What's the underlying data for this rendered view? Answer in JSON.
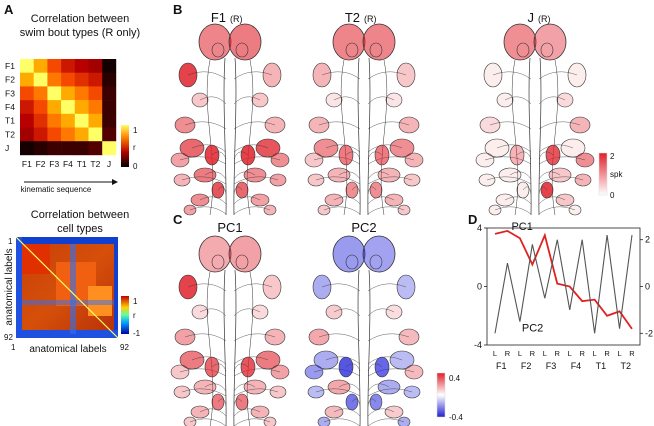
{
  "panels": {
    "A": {
      "letter": "A",
      "top_title_line1": "Correlation between",
      "top_title_line2": "swim bout types (R only)",
      "row_labels": [
        "F1",
        "F2",
        "F3",
        "F4",
        "T1",
        "T2",
        "J"
      ],
      "col_labels": [
        "F1",
        "F2",
        "F3",
        "F4",
        "T1",
        "T2",
        "J"
      ],
      "axis_caption": "kinematic sequence",
      "top_colorbar": {
        "max_label": "1",
        "mid_label": "r",
        "min_label": "0"
      },
      "top_matrix": [
        [
          1.0,
          0.8,
          0.6,
          0.5,
          0.45,
          0.4,
          0.05
        ],
        [
          0.8,
          1.0,
          0.7,
          0.6,
          0.55,
          0.5,
          0.1
        ],
        [
          0.6,
          0.7,
          1.0,
          0.8,
          0.7,
          0.6,
          0.15
        ],
        [
          0.5,
          0.6,
          0.8,
          1.0,
          0.8,
          0.7,
          0.15
        ],
        [
          0.45,
          0.55,
          0.7,
          0.8,
          1.0,
          0.8,
          0.15
        ],
        [
          0.4,
          0.5,
          0.6,
          0.7,
          0.8,
          1.0,
          0.2
        ],
        [
          0.05,
          0.1,
          0.15,
          0.15,
          0.15,
          0.2,
          1.0
        ]
      ],
      "bottom_title_line1": "Correlation between",
      "bottom_title_line2": "cell types",
      "bottom_y_label": "anatomical labels",
      "bottom_x_label": "anatomical labels",
      "bottom_tick_start": "1",
      "bottom_tick_end": "92",
      "bottom_colorbar": {
        "max_label": "1",
        "mid_label": "r",
        "min_label": "-1"
      }
    },
    "B": {
      "letter": "B",
      "maps": [
        {
          "title": "F1",
          "suffix": "(R)"
        },
        {
          "title": "T2",
          "suffix": "(R)"
        },
        {
          "title": "J",
          "suffix": "(R)"
        }
      ],
      "colorbar": {
        "max_label": "2",
        "unit": "spk",
        "min_label": "0"
      }
    },
    "C": {
      "letter": "C",
      "maps": [
        {
          "title": "PC1"
        },
        {
          "title": "PC2"
        }
      ],
      "colorbar": {
        "max_label": "0.4",
        "min_label": "-0.4"
      }
    },
    "D": {
      "letter": "D",
      "left_ticks": [
        "4",
        "0",
        "-4"
      ],
      "right_ticks": [
        "2",
        "0",
        "-2"
      ],
      "x_lr_labels": [
        "L",
        "R",
        "L",
        "R",
        "L",
        "R",
        "L",
        "R",
        "L",
        "R",
        "L",
        "R"
      ],
      "x_groups": [
        "F1",
        "F2",
        "F3",
        "F4",
        "T1",
        "T2"
      ],
      "series_labels": {
        "pc1": "PC1",
        "pc2": "PC2"
      },
      "colors": {
        "pc1": "#e0221e",
        "pc2": "#555555"
      }
    }
  },
  "chart_data": {
    "type": "line",
    "categories": [
      "F1 L",
      "F1 R",
      "F2 L",
      "F2 R",
      "F3 L",
      "F3 R",
      "F4 L",
      "F4 R",
      "T1 L",
      "T1 R",
      "T2 L",
      "T2 R"
    ],
    "series": [
      {
        "name": "PC1",
        "axis": "left",
        "values": [
          3.6,
          3.8,
          3.3,
          1.5,
          3.5,
          0.2,
          0.0,
          -1.0,
          -0.9,
          -2.0,
          -1.7,
          -2.9
        ]
      },
      {
        "name": "PC2",
        "axis": "right",
        "values": [
          -2.0,
          1.0,
          -1.5,
          1.8,
          -0.5,
          2.0,
          -1.0,
          2.0,
          -2.0,
          2.2,
          -1.8,
          2.2
        ]
      }
    ],
    "left_ylim": [
      -4,
      4
    ],
    "right_ylim": [
      -2.5,
      2.5
    ]
  }
}
